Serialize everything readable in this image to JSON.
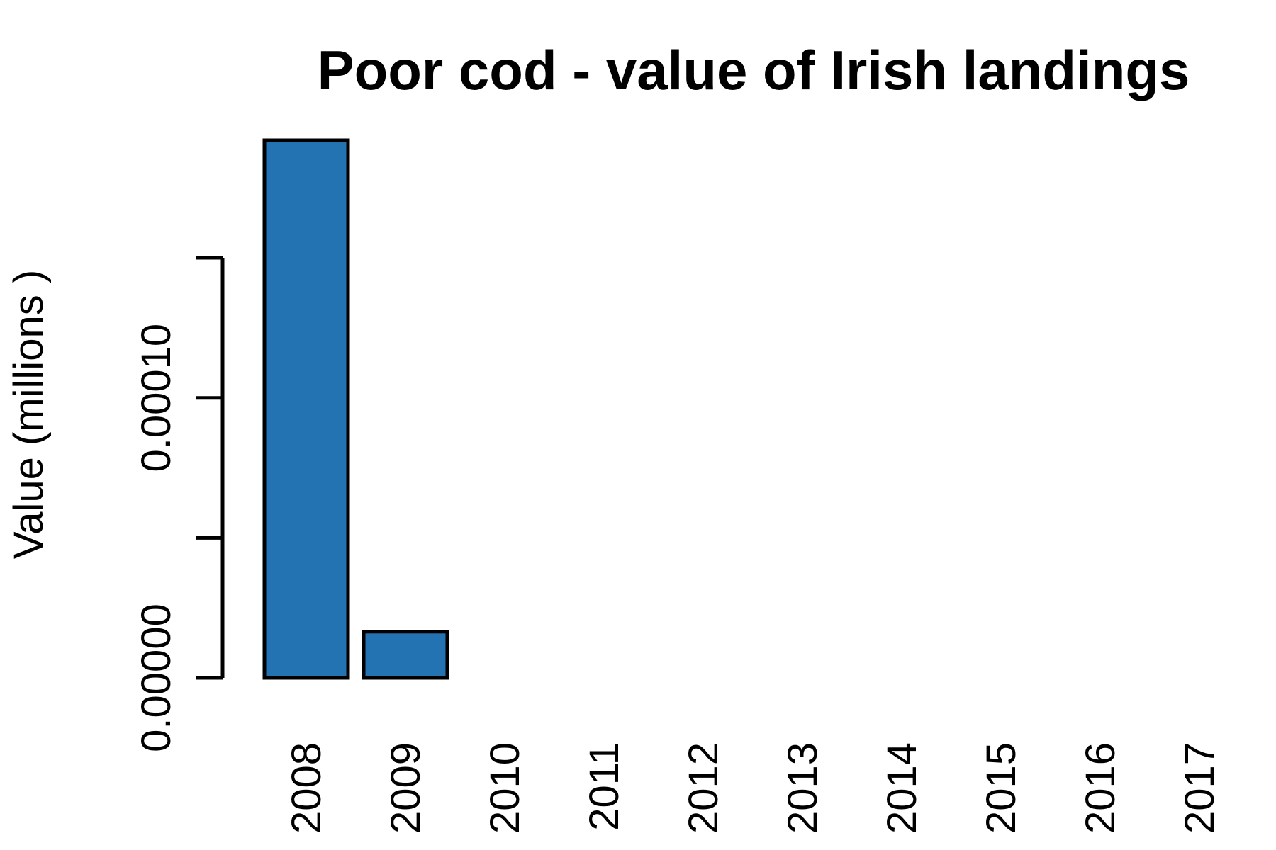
{
  "chart_data": {
    "type": "bar",
    "title": "Poor cod - value of Irish landings",
    "xlabel": "",
    "ylabel": "Value (millions )",
    "categories": [
      "2008",
      "2009",
      "2010",
      "2011",
      "2012",
      "2013",
      "2014",
      "2015",
      "2016",
      "2017"
    ],
    "values": [
      0.000192,
      1.65e-05,
      0,
      0,
      0,
      0,
      0,
      0,
      0,
      0
    ],
    "yticks": [
      0,
      5e-05,
      0.0001,
      0.00015
    ],
    "ytick_labels": [
      "0.00000",
      "",
      "0.00010",
      ""
    ],
    "ylim": [
      0,
      0.000192
    ],
    "grid": false,
    "bar_color": "#2372B2"
  }
}
